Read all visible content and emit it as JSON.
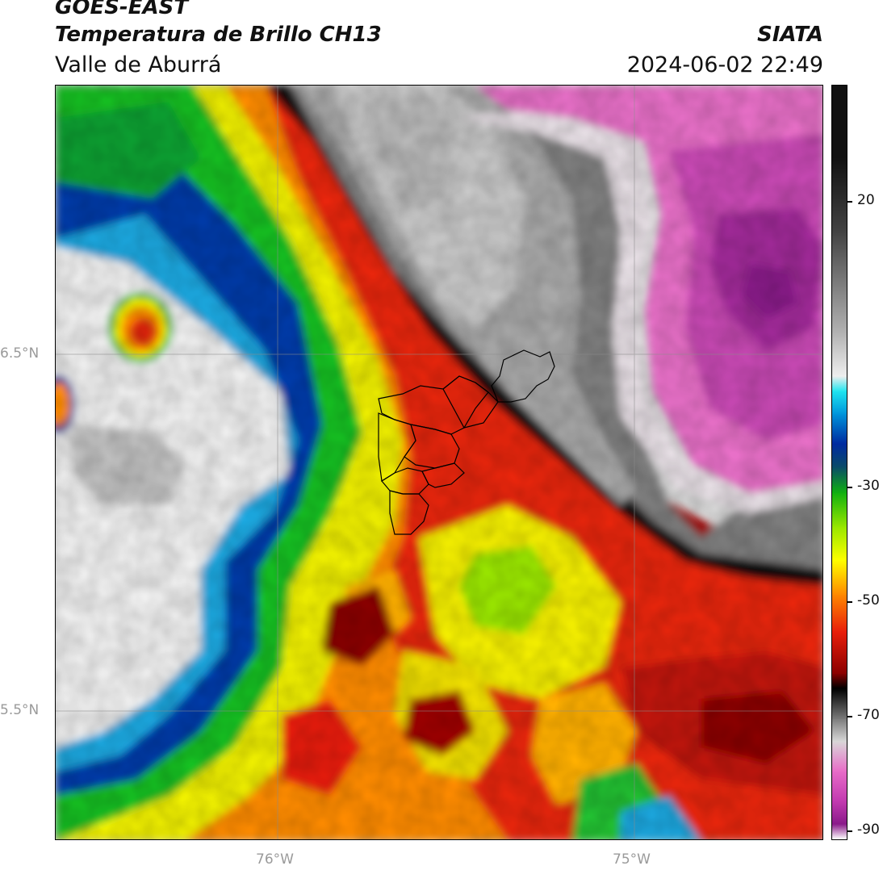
{
  "header": {
    "satellite": "GOES-EAST",
    "product": "Temperatura de Brillo CH13",
    "region": "Valle de Aburrá",
    "organization": "SIATA",
    "datetime": "2024-06-02 22:49"
  },
  "map": {
    "lat_labels": [
      "6.5°N",
      "5.5°N"
    ],
    "lon_labels": [
      "76°W",
      "75°W"
    ],
    "gridlines": true,
    "overlay": "municipal boundaries of Valle de Aburrá"
  },
  "colorbar": {
    "ticks": [
      "20",
      "-30",
      "-50",
      "-70",
      "-90"
    ],
    "range": [
      -92,
      30
    ],
    "colors": [
      "#ffffff",
      "#8a1a8a",
      "#c23ab0",
      "#e86cc8",
      "#d8d8d8",
      "#7a7a7a",
      "#000000",
      "#8a0000",
      "#e81e0a",
      "#ff8a00",
      "#ffff00",
      "#96e600",
      "#10b010",
      "#0a4a6a",
      "#002aa0",
      "#0096dc",
      "#20e6f0",
      "#eeeeee",
      "#b0b0b0",
      "#444444",
      "#111111"
    ]
  }
}
